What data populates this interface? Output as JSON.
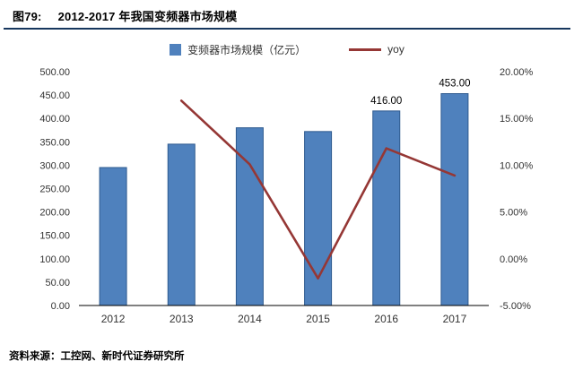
{
  "header": {
    "fig_label": "图79:",
    "title": "2012-2017 年我国变频器市场规模"
  },
  "legend": {
    "bar_label": "变频器市场规模（亿元）",
    "line_label": "yoy"
  },
  "footer": {
    "source": "资料来源：工控网、新时代证券研究所"
  },
  "colors": {
    "bar_fill": "#4F81BD",
    "bar_border": "#2E5A8F",
    "line": "#953735",
    "rule": "#17375E",
    "axis_line": "#000000"
  },
  "chart_data": {
    "type": "bar",
    "subtype": "bar-with-line",
    "categories": [
      "2012",
      "2013",
      "2014",
      "2015",
      "2016",
      "2017"
    ],
    "series": [
      {
        "name": "变频器市场规模（亿元）",
        "type": "bar",
        "axis": "left",
        "values": [
          295,
          345,
          380,
          372,
          416,
          453
        ],
        "labels": [
          null,
          null,
          null,
          null,
          "416.00",
          "453.00"
        ]
      },
      {
        "name": "yoy",
        "type": "line",
        "axis": "right",
        "values": [
          null,
          16.9,
          10.1,
          -2.1,
          11.8,
          8.9
        ]
      }
    ],
    "left_axis": {
      "min": 0,
      "max": 500,
      "step": 50,
      "decimals": 2
    },
    "right_axis": {
      "min": -5,
      "max": 20,
      "step": 5,
      "decimals": 2,
      "suffix": "%"
    },
    "grid": false,
    "legend_position": "top-center",
    "title": "2012-2017 年我国变频器市场规模"
  }
}
